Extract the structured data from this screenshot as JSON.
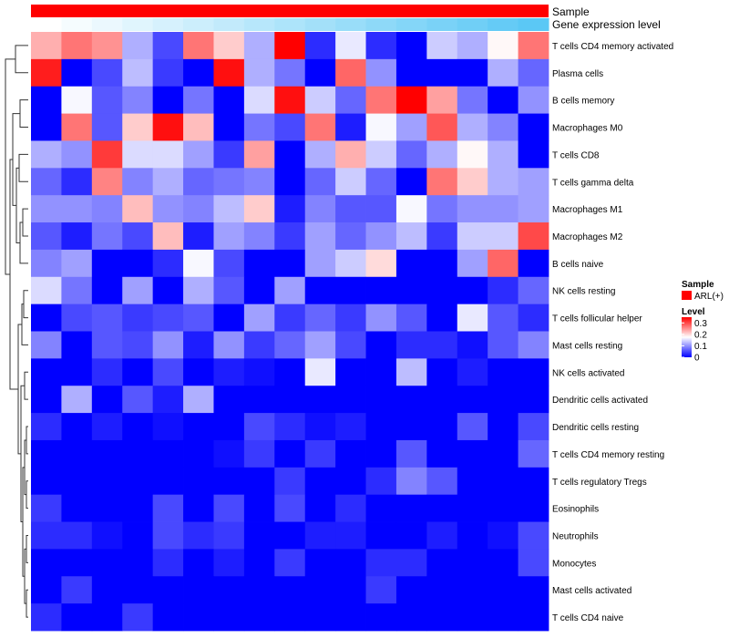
{
  "chart_data": {
    "type": "heatmap",
    "annotation_tracks": [
      {
        "name": "Sample",
        "label": "Sample",
        "color": "#ff0000"
      },
      {
        "name": "Gene expression level",
        "label": "Gene expression level",
        "gradient": [
          "#ffffff",
          "#5bc8f5"
        ]
      }
    ],
    "legend": {
      "sample_title": "Sample",
      "sample_item": "ARL(+)",
      "sample_color": "#ff0000",
      "level_title": "Level",
      "level_ticks": [
        "0.3",
        "0.2",
        "0.1",
        "0"
      ],
      "level_colors": [
        "#0000ff",
        "#ffffff",
        "#ff0000"
      ],
      "level_range": [
        0,
        0.35
      ]
    },
    "rows": [
      "T cells CD4 memory activated",
      "Plasma cells",
      "B cells memory",
      "Macrophages M0",
      "T cells CD8",
      "T cells gamma delta",
      "Macrophages M1",
      "Macrophages M2",
      "B cells naive",
      "NK cells resting",
      "T cells follicular helper",
      "Mast cells resting",
      "NK cells activated",
      "Dendritic cells activated",
      "Dendritic cells resting",
      "T cells CD4 memory resting",
      "T cells regulatory  Tregs",
      "Eosinophils",
      "Neutrophils",
      "Monocytes",
      "Mast cells activated",
      "T cells CD4 naive"
    ],
    "values": [
      [
        0.23,
        0.27,
        0.25,
        0.12,
        0.05,
        0.27,
        0.21,
        0.12,
        0.35,
        0.03,
        0.16,
        0.03,
        0.0,
        0.14,
        0.12,
        0.18,
        0.27
      ],
      [
        0.33,
        0.0,
        0.05,
        0.13,
        0.04,
        0.0,
        0.34,
        0.12,
        0.08,
        0.0,
        0.28,
        0.1,
        0.0,
        0.0,
        0.0,
        0.12,
        0.07
      ],
      [
        0.0,
        0.17,
        0.06,
        0.09,
        0.0,
        0.08,
        0.0,
        0.15,
        0.34,
        0.14,
        0.07,
        0.27,
        0.35,
        0.24,
        0.08,
        0.0,
        0.1
      ],
      [
        0.0,
        0.27,
        0.06,
        0.21,
        0.34,
        0.22,
        0.0,
        0.08,
        0.05,
        0.27,
        0.02,
        0.17,
        0.11,
        0.29,
        0.12,
        0.09,
        0.0
      ],
      [
        0.12,
        0.1,
        0.31,
        0.15,
        0.15,
        0.11,
        0.04,
        0.24,
        0.0,
        0.12,
        0.23,
        0.14,
        0.07,
        0.12,
        0.18,
        0.12,
        0.0
      ],
      [
        0.07,
        0.03,
        0.26,
        0.09,
        0.12,
        0.07,
        0.08,
        0.09,
        0.0,
        0.07,
        0.14,
        0.07,
        0.0,
        0.27,
        0.21,
        0.12,
        0.11
      ],
      [
        0.1,
        0.1,
        0.09,
        0.22,
        0.1,
        0.09,
        0.13,
        0.21,
        0.02,
        0.09,
        0.06,
        0.06,
        0.17,
        0.08,
        0.1,
        0.1,
        0.11
      ],
      [
        0.06,
        0.02,
        0.08,
        0.05,
        0.22,
        0.02,
        0.11,
        0.09,
        0.04,
        0.11,
        0.07,
        0.1,
        0.13,
        0.04,
        0.14,
        0.14,
        0.3
      ],
      [
        0.09,
        0.11,
        0.0,
        0.0,
        0.03,
        0.17,
        0.05,
        0.0,
        0.0,
        0.11,
        0.14,
        0.2,
        0.0,
        0.0,
        0.11,
        0.28,
        0.0
      ],
      [
        0.15,
        0.08,
        0.0,
        0.11,
        0.0,
        0.12,
        0.06,
        0.0,
        0.11,
        0.0,
        0.0,
        0.0,
        0.0,
        0.0,
        0.0,
        0.03,
        0.07
      ],
      [
        0.0,
        0.05,
        0.06,
        0.04,
        0.05,
        0.06,
        0.0,
        0.11,
        0.04,
        0.07,
        0.04,
        0.1,
        0.06,
        0.0,
        0.16,
        0.06,
        0.03
      ],
      [
        0.09,
        0.0,
        0.06,
        0.05,
        0.1,
        0.02,
        0.1,
        0.04,
        0.07,
        0.11,
        0.05,
        0.0,
        0.03,
        0.03,
        0.01,
        0.06,
        0.09
      ],
      [
        0.0,
        0.0,
        0.03,
        0.0,
        0.05,
        0.0,
        0.02,
        0.01,
        0.0,
        0.16,
        0.0,
        0.0,
        0.13,
        0.0,
        0.02,
        0.0,
        0.0
      ],
      [
        0.0,
        0.12,
        0.0,
        0.06,
        0.02,
        0.12,
        0.0,
        0.0,
        0.0,
        0.0,
        0.0,
        0.0,
        0.0,
        0.0,
        0.0,
        0.0,
        0.0
      ],
      [
        0.03,
        0.0,
        0.02,
        0.0,
        0.01,
        0.0,
        0.0,
        0.05,
        0.03,
        0.01,
        0.02,
        0.0,
        0.0,
        0.0,
        0.06,
        0.0,
        0.05
      ],
      [
        0.0,
        0.0,
        0.0,
        0.0,
        0.0,
        0.0,
        0.01,
        0.04,
        0.0,
        0.04,
        0.0,
        0.0,
        0.06,
        0.0,
        0.0,
        0.0,
        0.07
      ],
      [
        0.0,
        0.0,
        0.0,
        0.0,
        0.0,
        0.0,
        0.0,
        0.0,
        0.04,
        0.0,
        0.0,
        0.03,
        0.09,
        0.06,
        0.0,
        0.0,
        0.0
      ],
      [
        0.04,
        0.0,
        0.0,
        0.0,
        0.05,
        0.0,
        0.05,
        0.0,
        0.05,
        0.0,
        0.03,
        0.0,
        0.0,
        0.0,
        0.0,
        0.0,
        0.0
      ],
      [
        0.03,
        0.03,
        0.01,
        0.0,
        0.05,
        0.03,
        0.04,
        0.0,
        0.0,
        0.02,
        0.02,
        0.0,
        0.0,
        0.02,
        0.0,
        0.01,
        0.05
      ],
      [
        0.0,
        0.0,
        0.0,
        0.0,
        0.03,
        0.0,
        0.02,
        0.0,
        0.04,
        0.0,
        0.0,
        0.03,
        0.03,
        0.0,
        0.0,
        0.0,
        0.05
      ],
      [
        0.0,
        0.04,
        0.0,
        0.0,
        0.0,
        0.0,
        0.0,
        0.0,
        0.0,
        0.0,
        0.0,
        0.04,
        0.0,
        0.0,
        0.0,
        0.0,
        0.0
      ],
      [
        0.03,
        0.0,
        0.0,
        0.04,
        0.0,
        0.0,
        0.0,
        0.0,
        0.0,
        0.0,
        0.0,
        0.0,
        0.0,
        0.0,
        0.0,
        0.0,
        0.0
      ]
    ]
  }
}
